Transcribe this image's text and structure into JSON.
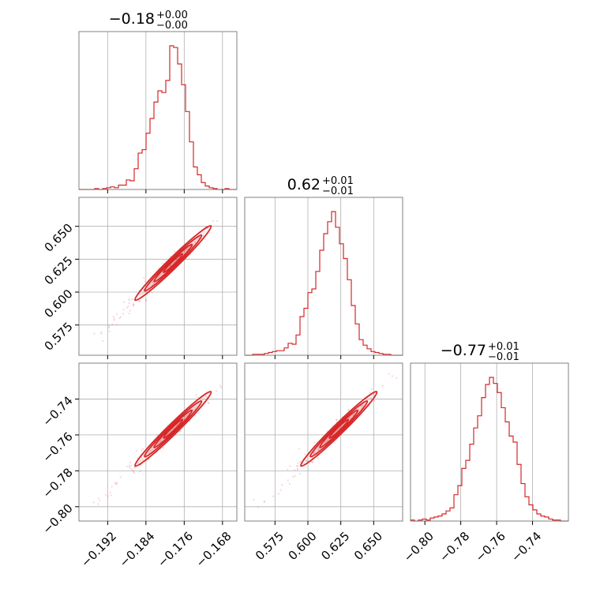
{
  "chart_data": {
    "type": "corner",
    "colors": {
      "line": "#d62728",
      "frame": "#808080",
      "grid": "#b0b0b0"
    },
    "params": [
      {
        "range": [
          -0.198,
          -0.165
        ],
        "ticks": [
          -0.192,
          -0.184,
          -0.176,
          -0.168
        ],
        "tick_labels": [
          "−0.192",
          "−0.184",
          "−0.176",
          "−0.168"
        ],
        "title": {
          "value": "−0.18",
          "plus": "+0.00",
          "minus": "−0.00"
        }
      },
      {
        "range": [
          0.552,
          0.672
        ],
        "ticks": [
          0.575,
          0.6,
          0.625,
          0.65
        ],
        "tick_labels": [
          "0.575",
          "0.600",
          "0.625",
          "0.650"
        ],
        "title": {
          "value": "0.62",
          "plus": "+0.01",
          "minus": "−0.01"
        }
      },
      {
        "range": [
          -0.808,
          -0.72
        ],
        "ticks": [
          -0.8,
          -0.78,
          -0.76,
          -0.74
        ],
        "tick_labels": [
          "−0.80",
          "−0.78",
          "−0.76",
          "−0.74"
        ],
        "title": {
          "value": "−0.77",
          "plus": "+0.01",
          "minus": "−0.01"
        }
      }
    ],
    "histograms": [
      {
        "param": 0,
        "counts": [
          0,
          0,
          0,
          0,
          1,
          0,
          1,
          2,
          3,
          2,
          5,
          5,
          11,
          10,
          24,
          42,
          46,
          65,
          82,
          101,
          114,
          112,
          126,
          166,
          164,
          145,
          121,
          90,
          55,
          26,
          17,
          8,
          4,
          2,
          1,
          0,
          0,
          1,
          0,
          0
        ]
      },
      {
        "param": 1,
        "counts": [
          0,
          0,
          1,
          1,
          1,
          2,
          3,
          4,
          5,
          5,
          8,
          13,
          12,
          22,
          42,
          51,
          68,
          72,
          91,
          114,
          132,
          145,
          156,
          139,
          121,
          105,
          82,
          54,
          34,
          17,
          11,
          7,
          4,
          3,
          2,
          1,
          1,
          0,
          0,
          0
        ]
      },
      {
        "param": 2,
        "counts": [
          1,
          0,
          1,
          2,
          1,
          3,
          4,
          5,
          7,
          10,
          13,
          26,
          35,
          52,
          60,
          76,
          92,
          104,
          122,
          135,
          142,
          136,
          127,
          112,
          98,
          84,
          78,
          56,
          37,
          24,
          16,
          11,
          7,
          5,
          4,
          2,
          1,
          1,
          0,
          0
        ]
      }
    ],
    "pairs": [
      {
        "x": 1,
        "y": 0,
        "label": "2D density"
      },
      {
        "x": 2,
        "y": 0,
        "label": "2D density"
      },
      {
        "x": 2,
        "y": 1,
        "label": "2D density"
      }
    ],
    "grid": true
  }
}
